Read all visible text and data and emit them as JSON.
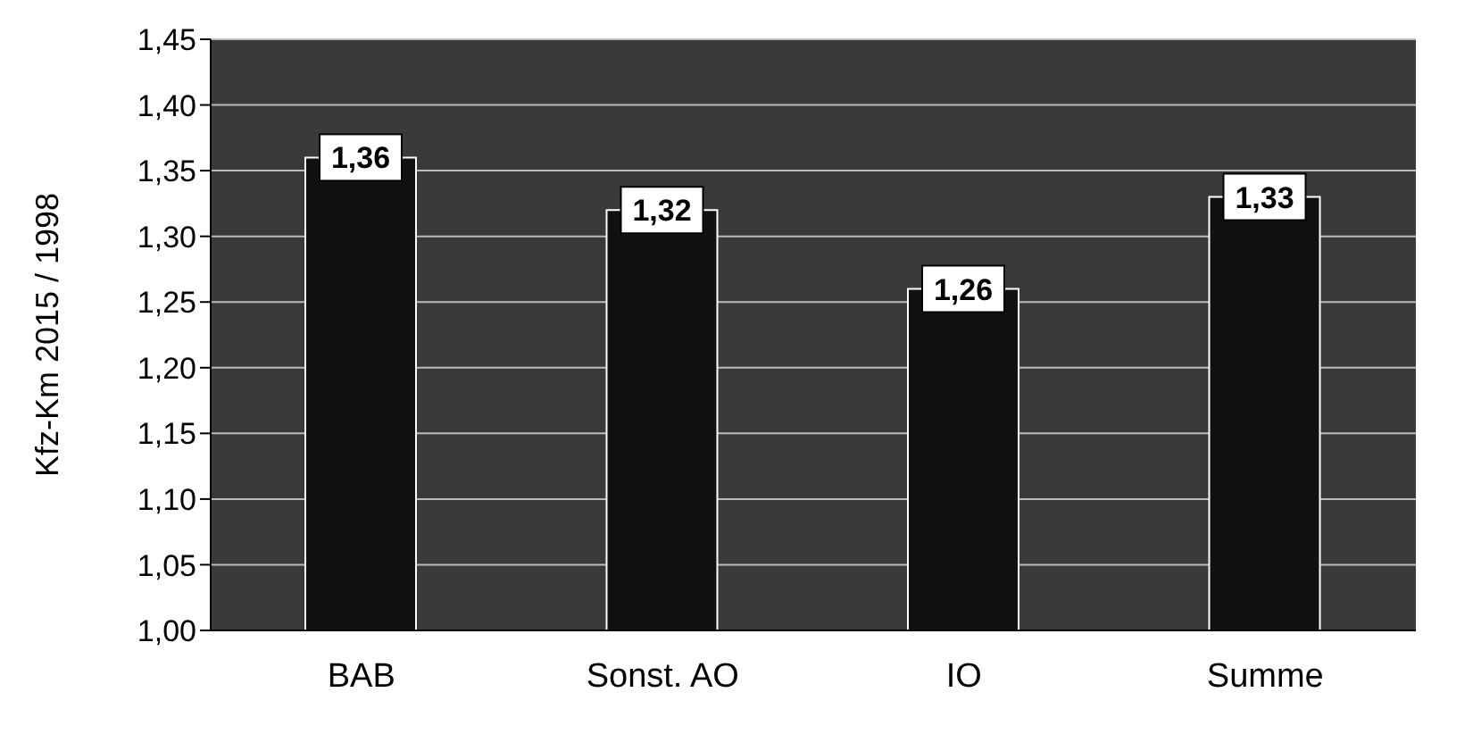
{
  "chart_data": {
    "type": "bar",
    "ylabel": "Kfz-Km 2015 / 1998",
    "categories": [
      "BAB",
      "Sonst. AO",
      "IO",
      "Summe"
    ],
    "values": [
      1.36,
      1.32,
      1.26,
      1.33
    ],
    "value_labels": [
      "1,36",
      "1,32",
      "1,26",
      "1,33"
    ],
    "color": "#111111",
    "ylim": [
      1.0,
      1.45
    ],
    "yticks": [
      {
        "value": 1.0,
        "label": "1,00"
      },
      {
        "value": 1.05,
        "label": "1,05"
      },
      {
        "value": 1.1,
        "label": "1,10"
      },
      {
        "value": 1.15,
        "label": "1,15"
      },
      {
        "value": 1.2,
        "label": "1,20"
      },
      {
        "value": 1.25,
        "label": "1,25"
      },
      {
        "value": 1.3,
        "label": "1,30"
      },
      {
        "value": 1.35,
        "label": "1,35"
      },
      {
        "value": 1.4,
        "label": "1,40"
      },
      {
        "value": 1.45,
        "label": "1,45"
      }
    ],
    "grid": "y"
  }
}
